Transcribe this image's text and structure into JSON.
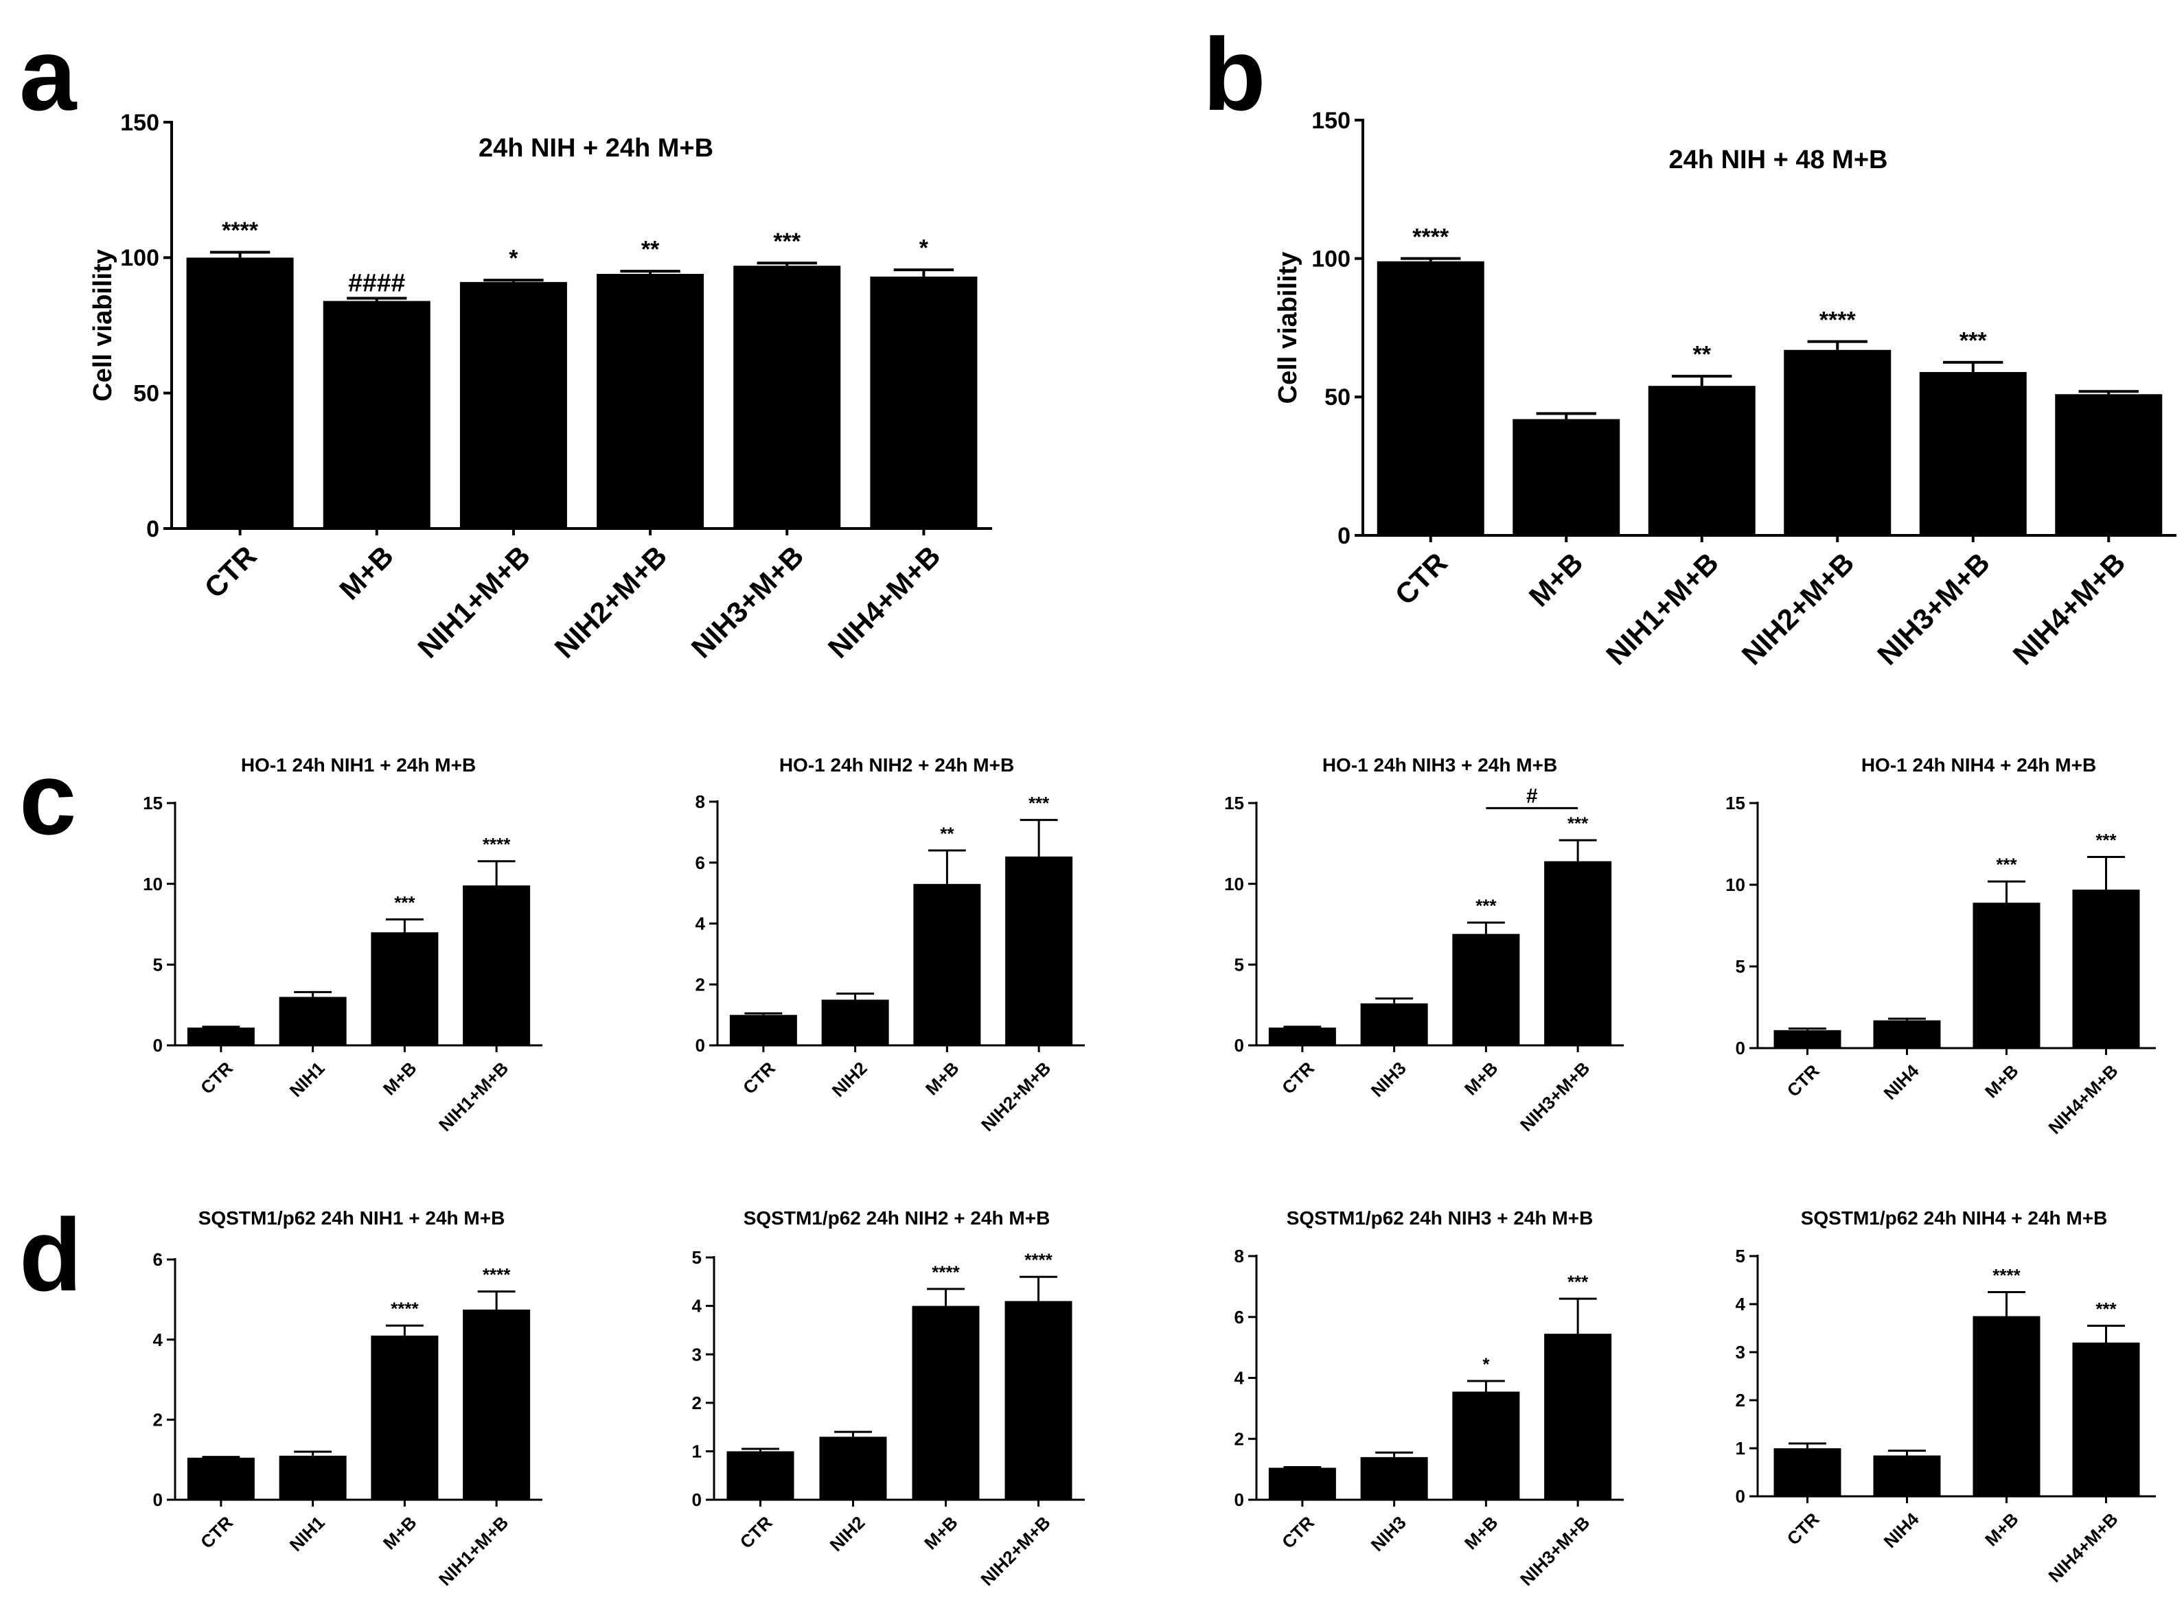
{
  "figure": {
    "panels": [
      {
        "letter": "a",
        "charts": [
          0
        ]
      },
      {
        "letter": "b",
        "charts": [
          1
        ]
      },
      {
        "letter": "c",
        "charts": [
          2,
          3,
          4,
          5
        ]
      },
      {
        "letter": "d",
        "charts": [
          6,
          7,
          8,
          9
        ]
      }
    ]
  },
  "chart_data": [
    {
      "type": "bar",
      "title": "24h NIH + 24h M+B",
      "ylabel": "Cell viability",
      "xlabel": "",
      "categories": [
        "CTR",
        "M+B",
        "NIH1+M+B",
        "NIH2+M+B",
        "NIH3+M+B",
        "NIH4+M+B"
      ],
      "values": [
        100,
        84,
        91,
        94,
        97,
        93
      ],
      "errors": [
        2,
        1,
        0.7,
        1,
        1,
        2.5
      ],
      "annotations": [
        "****",
        "####",
        "*",
        "**",
        "***",
        "*"
      ],
      "ylim": [
        0,
        150
      ],
      "yticks": [
        0,
        50,
        100,
        150
      ],
      "bar_color": "#000000"
    },
    {
      "type": "bar",
      "title": "24h NIH + 48 M+B",
      "ylabel": "Cell viability",
      "xlabel": "",
      "categories": [
        "CTR",
        "M+B",
        "NIH1+M+B",
        "NIH2+M+B",
        "NIH3+M+B",
        "NIH4+M+B"
      ],
      "values": [
        99,
        42,
        54,
        67,
        59,
        51
      ],
      "errors": [
        1,
        2,
        3.5,
        3,
        3.5,
        1
      ],
      "annotations": [
        "****",
        "",
        "**",
        "****",
        "***",
        ""
      ],
      "ylim": [
        0,
        150
      ],
      "yticks": [
        0,
        50,
        100,
        150
      ],
      "bar_color": "#000000"
    },
    {
      "type": "bar",
      "title": "HO-1 24h NIH1 + 24h M+B",
      "categories": [
        "CTR",
        "NIH1",
        "M+B",
        "NIH1+M+B"
      ],
      "values": [
        1.1,
        3.0,
        7.0,
        9.9
      ],
      "errors": [
        0.05,
        0.3,
        0.8,
        1.5
      ],
      "annotations": [
        "",
        "",
        "***",
        "****"
      ],
      "ylim": [
        0,
        15
      ],
      "yticks": [
        0,
        5,
        10,
        15
      ]
    },
    {
      "type": "bar",
      "title": "HO-1 24h NIH2 + 24h M+B",
      "categories": [
        "CTR",
        "NIH2",
        "M+B",
        "NIH2+M+B"
      ],
      "values": [
        1.0,
        1.5,
        5.3,
        6.2
      ],
      "errors": [
        0.05,
        0.2,
        1.1,
        1.2
      ],
      "annotations": [
        "",
        "",
        "**",
        "***"
      ],
      "ylim": [
        0,
        8
      ],
      "yticks": [
        0,
        2,
        4,
        6,
        8
      ]
    },
    {
      "type": "bar",
      "title": "HO-1 24h NIH3 + 24h M+B",
      "categories": [
        "CTR",
        "NIH3",
        "M+B",
        "NIH3+M+B"
      ],
      "values": [
        1.1,
        2.6,
        6.9,
        11.4
      ],
      "errors": [
        0.05,
        0.3,
        0.7,
        1.3
      ],
      "annotations": [
        "",
        "",
        "***",
        "***"
      ],
      "bracket": {
        "from": 2,
        "to": 3,
        "label": "#"
      },
      "ylim": [
        0,
        15
      ],
      "yticks": [
        0,
        5,
        10,
        15
      ]
    },
    {
      "type": "bar",
      "title": "HO-1 24h NIH4 + 24h M+B",
      "categories": [
        "CTR",
        "NIH4",
        "M+B",
        "NIH4+M+B"
      ],
      "values": [
        1.1,
        1.7,
        8.9,
        9.7
      ],
      "errors": [
        0.1,
        0.1,
        1.3,
        2.0
      ],
      "annotations": [
        "",
        "",
        "***",
        "***"
      ],
      "ylim": [
        0,
        15
      ],
      "yticks": [
        0,
        5,
        10,
        15
      ]
    },
    {
      "type": "bar",
      "title": "SQSTM1/p62 24h NIH1 + 24h M+B",
      "categories": [
        "CTR",
        "NIH1",
        "M+B",
        "NIH1+M+B"
      ],
      "values": [
        1.05,
        1.1,
        4.1,
        4.75
      ],
      "errors": [
        0.02,
        0.1,
        0.25,
        0.45
      ],
      "annotations": [
        "",
        "",
        "****",
        "****"
      ],
      "ylim": [
        0,
        6
      ],
      "yticks": [
        0,
        2,
        4,
        6
      ]
    },
    {
      "type": "bar",
      "title": "SQSTM1/p62 24h NIH2 + 24h M+B",
      "categories": [
        "CTR",
        "NIH2",
        "M+B",
        "NIH2+M+B"
      ],
      "values": [
        1.0,
        1.3,
        4.0,
        4.1
      ],
      "errors": [
        0.05,
        0.1,
        0.35,
        0.5
      ],
      "annotations": [
        "",
        "",
        "****",
        "****"
      ],
      "ylim": [
        0,
        5
      ],
      "yticks": [
        0,
        1,
        2,
        3,
        4,
        5
      ]
    },
    {
      "type": "bar",
      "title": "SQSTM1/p62 24h NIH3 + 24h M+B",
      "categories": [
        "CTR",
        "NIH3",
        "M+B",
        "NIH3+M+B"
      ],
      "values": [
        1.05,
        1.4,
        3.55,
        5.45
      ],
      "errors": [
        0.02,
        0.15,
        0.35,
        1.15
      ],
      "annotations": [
        "",
        "",
        "*",
        "***"
      ],
      "ylim": [
        0,
        8
      ],
      "yticks": [
        0,
        2,
        4,
        6,
        8
      ]
    },
    {
      "type": "bar",
      "title": "SQSTM1/p62 24h NIH4 + 24h M+B",
      "categories": [
        "CTR",
        "NIH4",
        "M+B",
        "NIH4+M+B"
      ],
      "values": [
        1.0,
        0.85,
        3.75,
        3.2
      ],
      "errors": [
        0.1,
        0.1,
        0.5,
        0.35
      ],
      "annotations": [
        "",
        "",
        "****",
        "***"
      ],
      "ylim": [
        0,
        5
      ],
      "yticks": [
        0,
        1,
        2,
        3,
        4,
        5
      ]
    }
  ]
}
